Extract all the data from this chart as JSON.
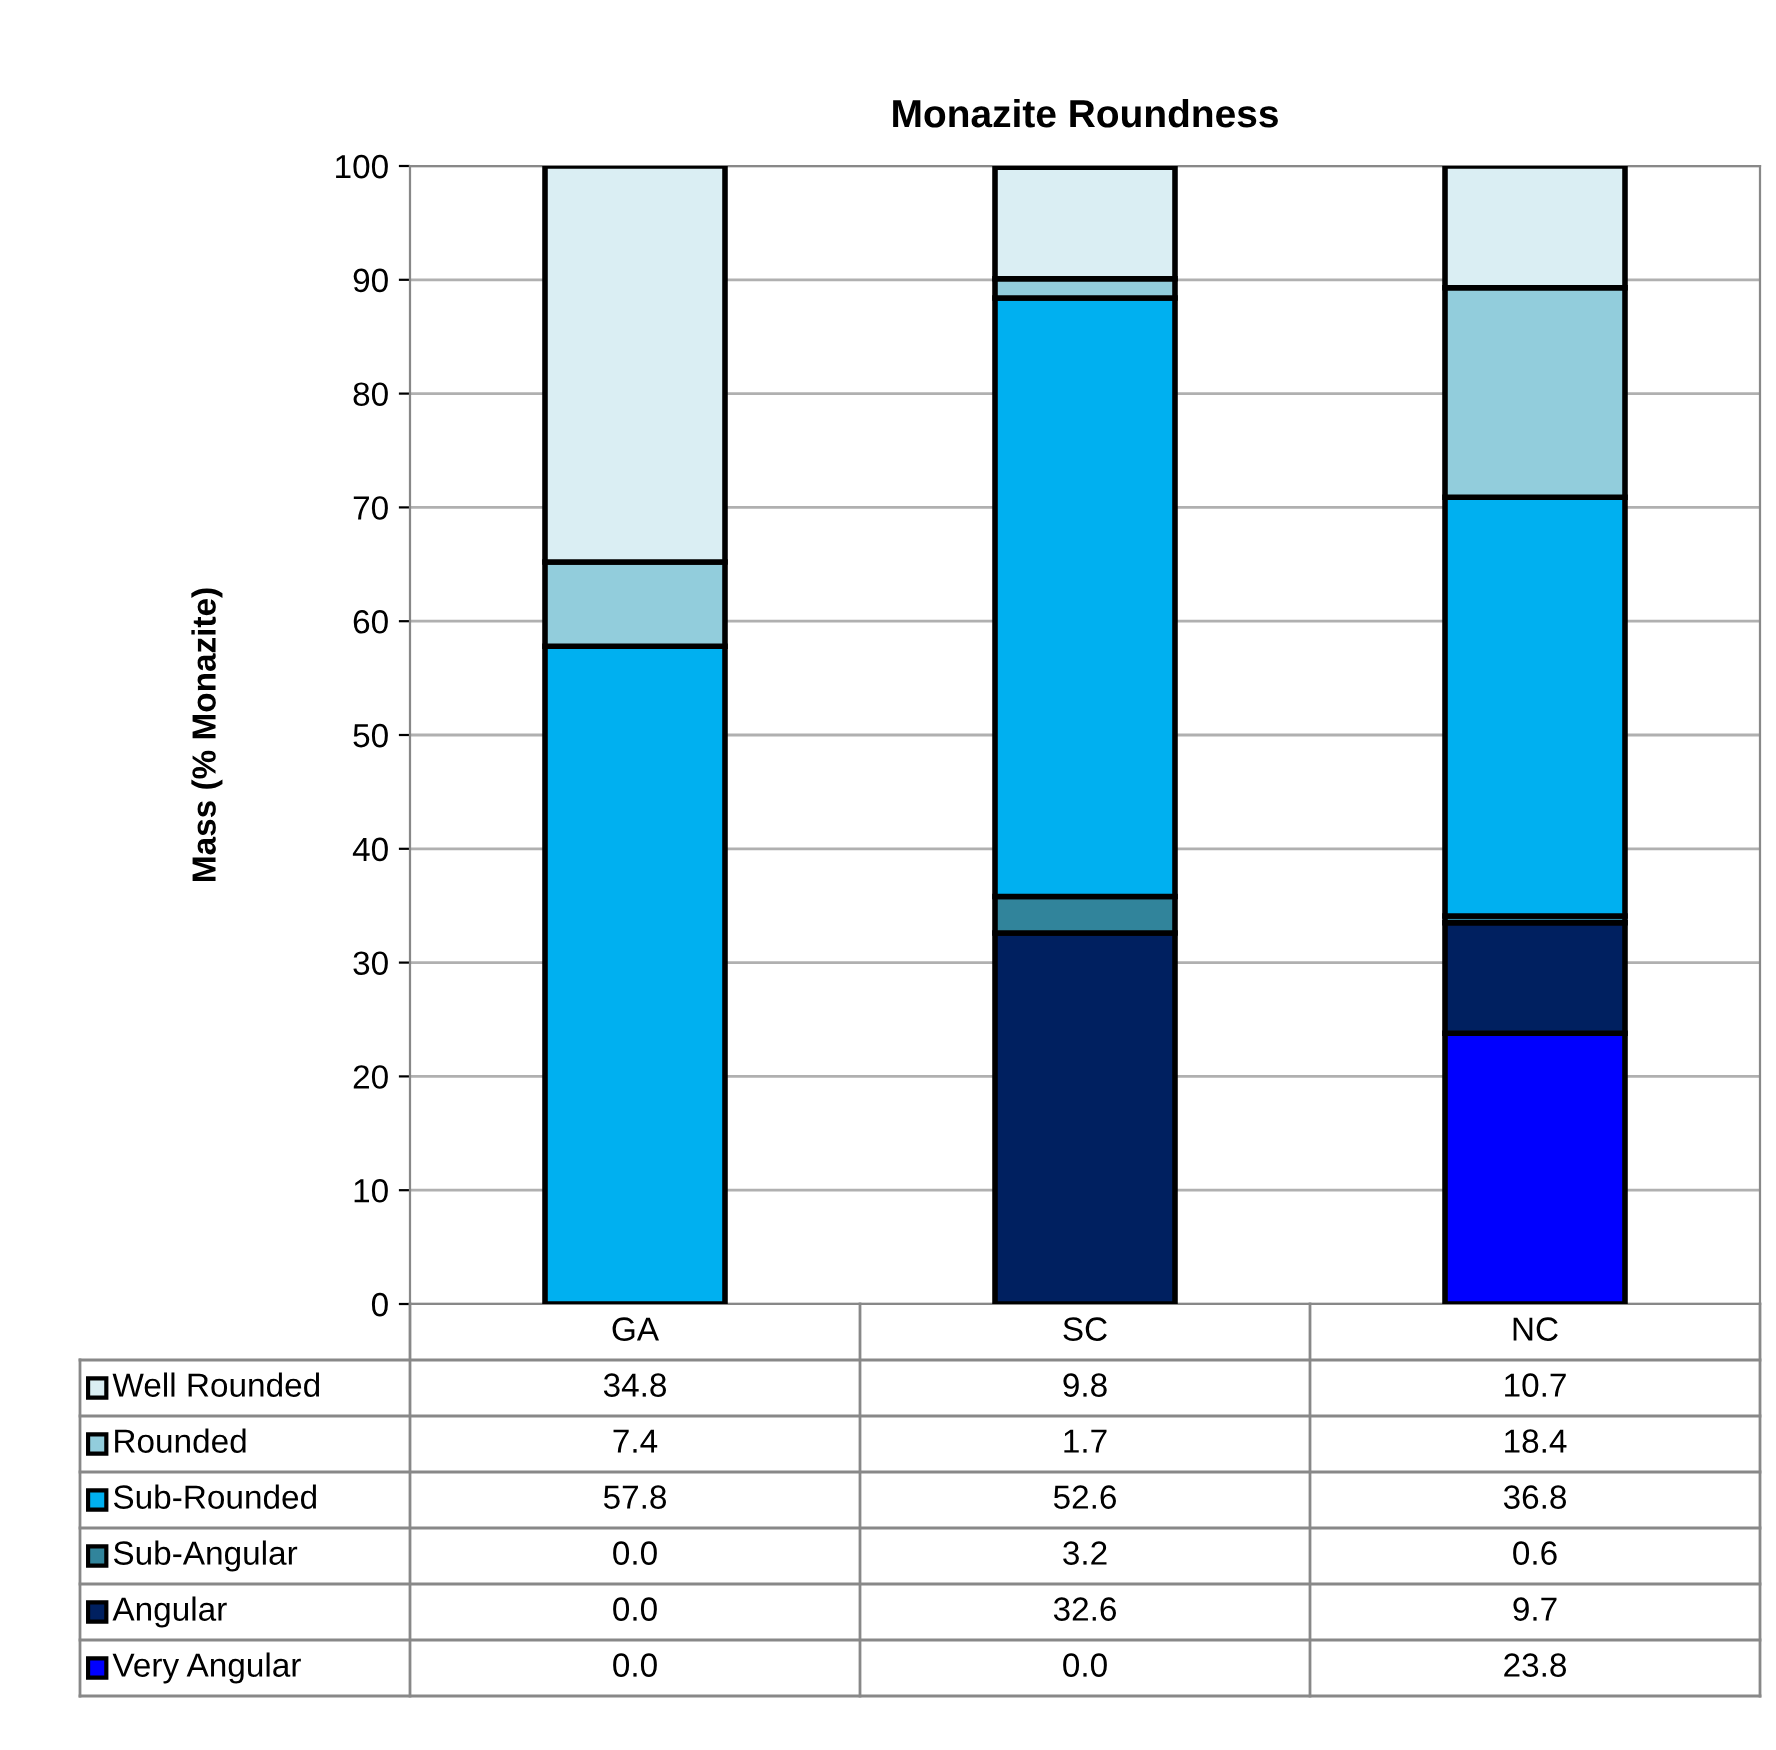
{
  "chart_data": {
    "type": "bar",
    "title": "Monazite Roundness",
    "ylabel": "Mass (% Monazite)",
    "categories": [
      "GA",
      "SC",
      "NC"
    ],
    "stacked": true,
    "legend": "bottom",
    "grid": "y",
    "ylim": [
      0,
      100
    ],
    "yticks": [
      0,
      10,
      20,
      30,
      40,
      50,
      60,
      70,
      80,
      90,
      100
    ],
    "series": [
      {
        "name": "Very Angular",
        "color": "#0000ff",
        "values": [
          0.0,
          0.0,
          23.8
        ],
        "value_labels": [
          "0.0",
          "0.0",
          "23.8"
        ]
      },
      {
        "name": "Angular",
        "color": "#002060",
        "values": [
          0.0,
          32.6,
          9.7
        ],
        "value_labels": [
          "0.0",
          "32.6",
          "9.7"
        ]
      },
      {
        "name": "Sub-Angular",
        "color": "#31849b",
        "values": [
          0.0,
          3.2,
          0.6
        ],
        "value_labels": [
          "0.0",
          "3.2",
          "0.6"
        ]
      },
      {
        "name": "Sub-Rounded",
        "color": "#00b0f0",
        "values": [
          57.8,
          52.6,
          36.8
        ],
        "value_labels": [
          "57.8",
          "52.6",
          "36.8"
        ]
      },
      {
        "name": "Rounded",
        "color": "#92cddc",
        "values": [
          7.4,
          1.7,
          18.4
        ],
        "value_labels": [
          "7.4",
          "1.7",
          "18.4"
        ]
      },
      {
        "name": "Well Rounded",
        "color": "#daeef3",
        "values": [
          34.8,
          9.8,
          10.7
        ],
        "value_labels": [
          "34.8",
          "9.8",
          "10.7"
        ]
      }
    ]
  }
}
